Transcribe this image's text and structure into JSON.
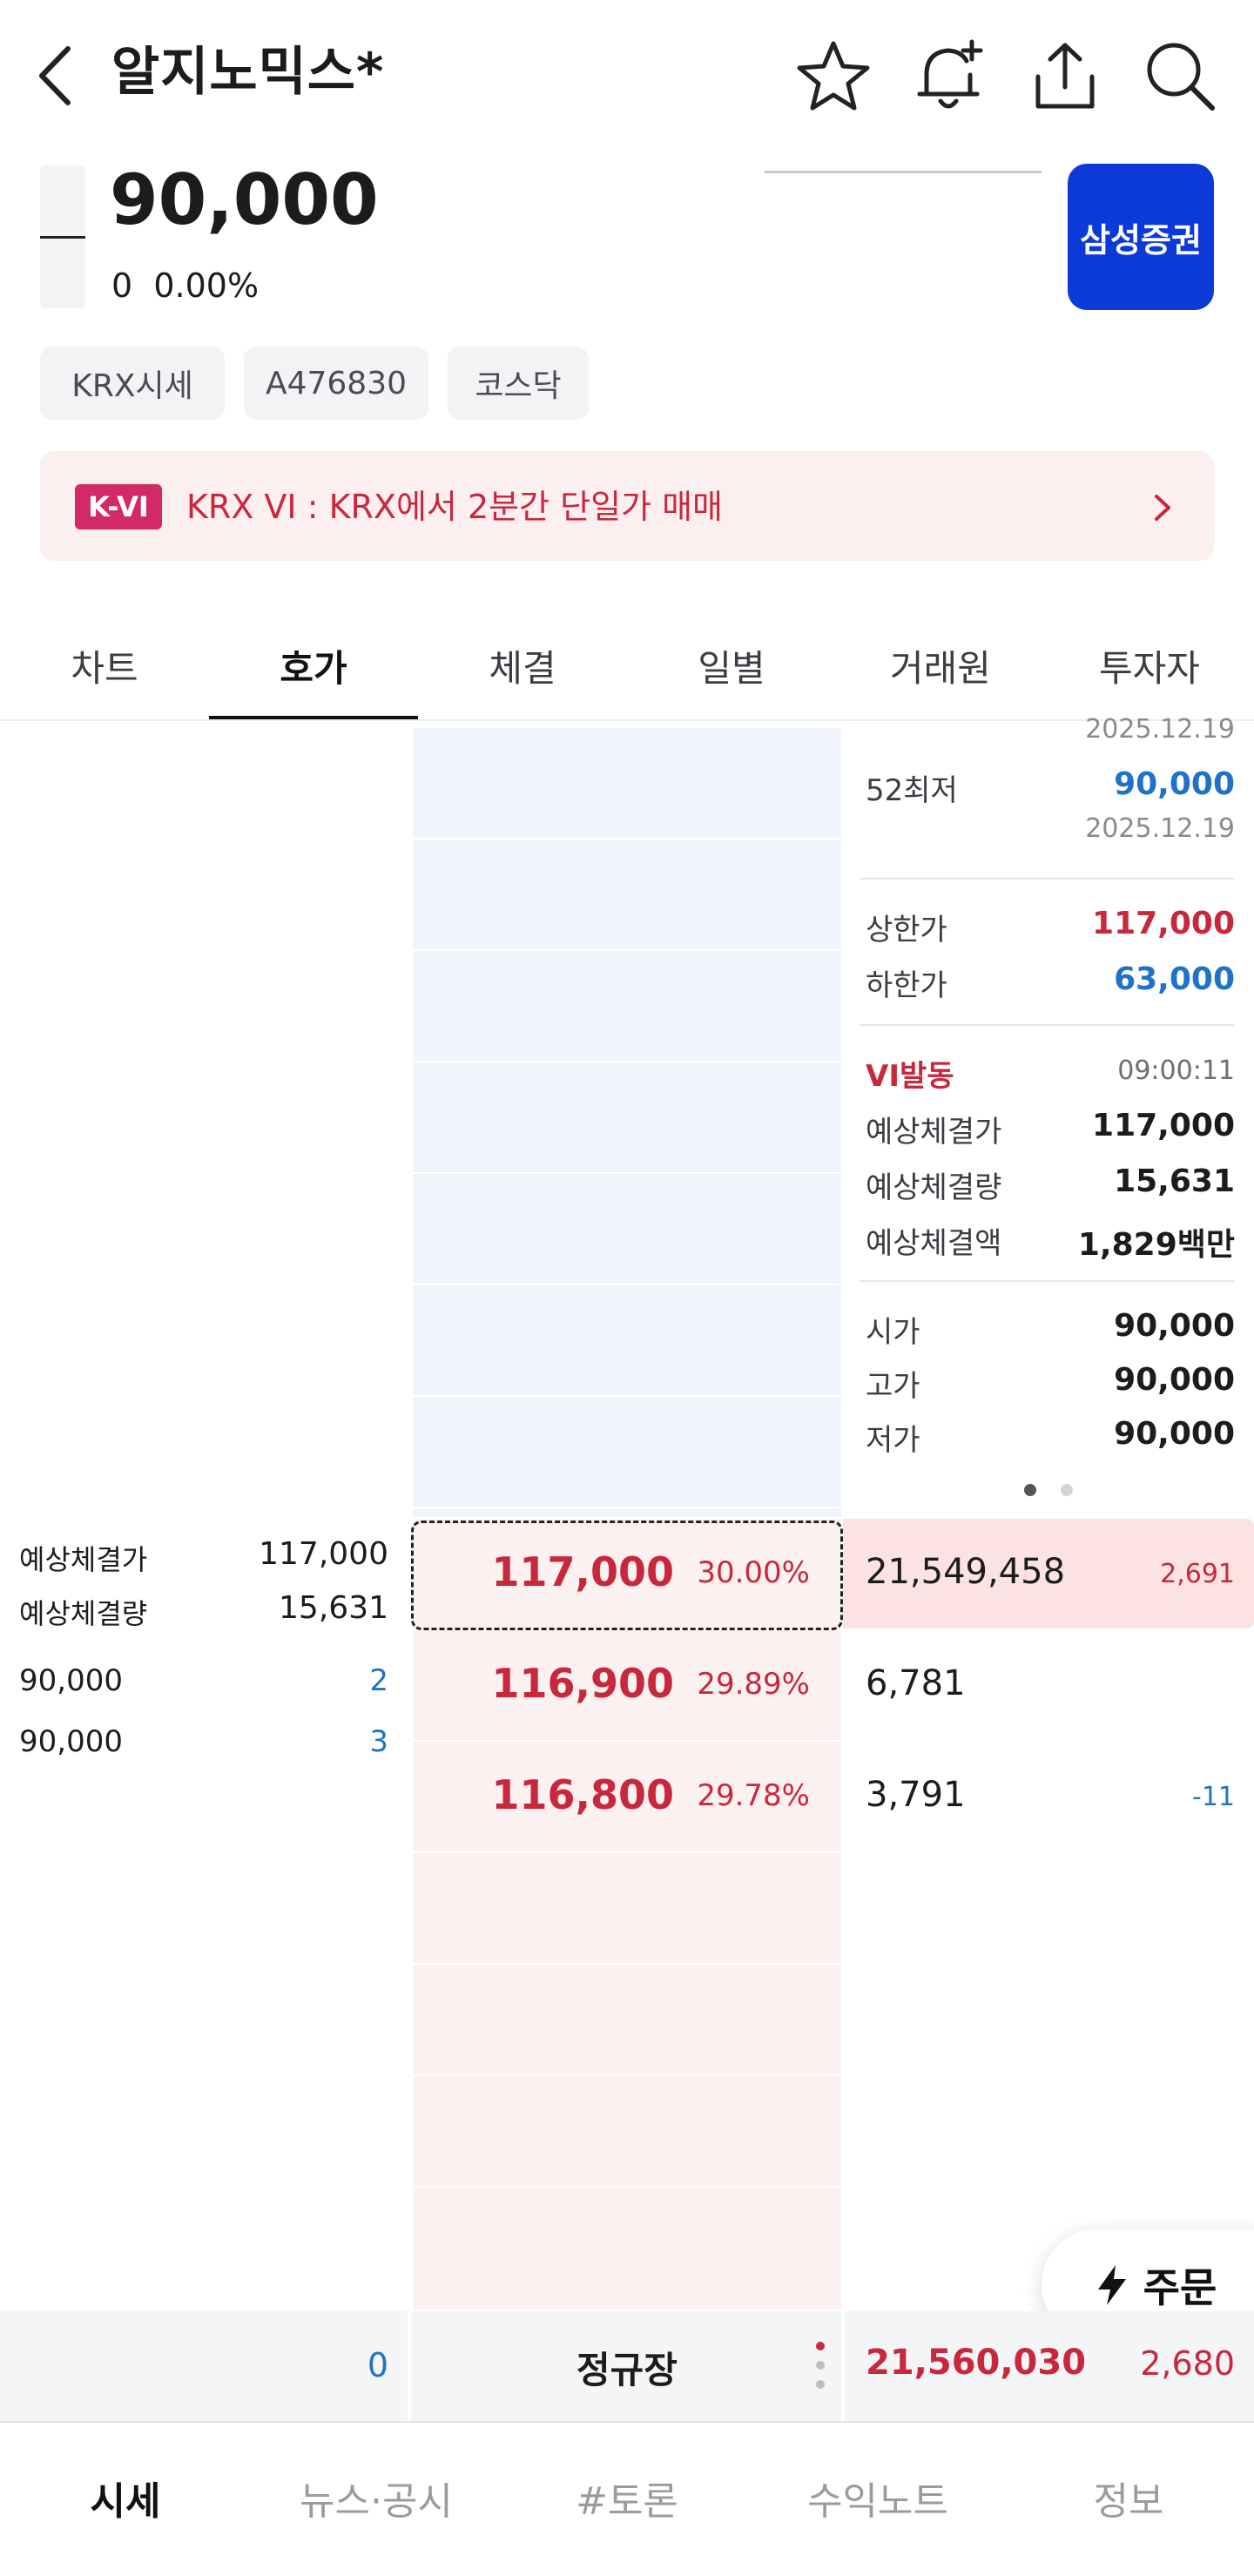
{
  "header": {
    "title": "알지노믹스*",
    "icons": [
      "back-icon",
      "star-icon",
      "bell-plus-icon",
      "share-icon",
      "search-icon"
    ]
  },
  "quote": {
    "price": "90,000",
    "change": "0",
    "change_pct": "0.00%",
    "broker_label": "삼성증권"
  },
  "tags": [
    "KRX시세",
    "A476830",
    "코스닥"
  ],
  "vi_banner": {
    "badge": "K-VI",
    "text": "KRX VI : KRX에서 2분간 단일가 매매"
  },
  "tabs": [
    "차트",
    "호가",
    "체결",
    "일별",
    "거래원",
    "투자자"
  ],
  "active_tab": "호가",
  "info_panel": {
    "top_date": "2025.12.19",
    "low52_label": "52최저",
    "low52_value": "90,000",
    "low52_date": "2025.12.19",
    "upper_limit_label": "상한가",
    "upper_limit_value": "117,000",
    "lower_limit_label": "하한가",
    "lower_limit_value": "63,000",
    "vi_label": "VI발동",
    "vi_time": "09:00:11",
    "exp_price_label": "예상체결가",
    "exp_price_value": "117,000",
    "exp_qty_label": "예상체결량",
    "exp_qty_value": "15,631",
    "exp_amt_label": "예상체결액",
    "exp_amt_value": "1,829백만",
    "open_label": "시가",
    "open_value": "90,000",
    "high_label": "고가",
    "high_value": "90,000",
    "low_label": "저가",
    "low_value": "90,000"
  },
  "expected": {
    "price_label": "예상체결가",
    "price_value": "117,000",
    "qty_label": "예상체결량",
    "qty_value": "15,631"
  },
  "trades": [
    {
      "price": "90,000",
      "qty": "2"
    },
    {
      "price": "90,000",
      "qty": "3"
    }
  ],
  "bids": [
    {
      "price": "117,000",
      "pct": "30.00%",
      "qty": "21,549,458",
      "delta": "2,691"
    },
    {
      "price": "116,900",
      "pct": "29.89%",
      "qty": "6,781",
      "delta": ""
    },
    {
      "price": "116,800",
      "pct": "29.78%",
      "qty": "3,791",
      "delta": "-11"
    }
  ],
  "totals": {
    "ask_total": "0",
    "session": "정규장",
    "bid_total": "21,560,030",
    "bid_delta": "2,680"
  },
  "order_button": "주문",
  "bottom_nav": [
    "시세",
    "뉴스·공시",
    "#토론",
    "수익노트",
    "정보"
  ],
  "colors": {
    "up_red": "#c8283c",
    "down_blue": "#1e73c8",
    "ask_bg": "#eff4fb",
    "bid_bg": "#fcf1f1",
    "broker_blue": "#0b3ad8",
    "vi_badge": "#d12a66"
  }
}
